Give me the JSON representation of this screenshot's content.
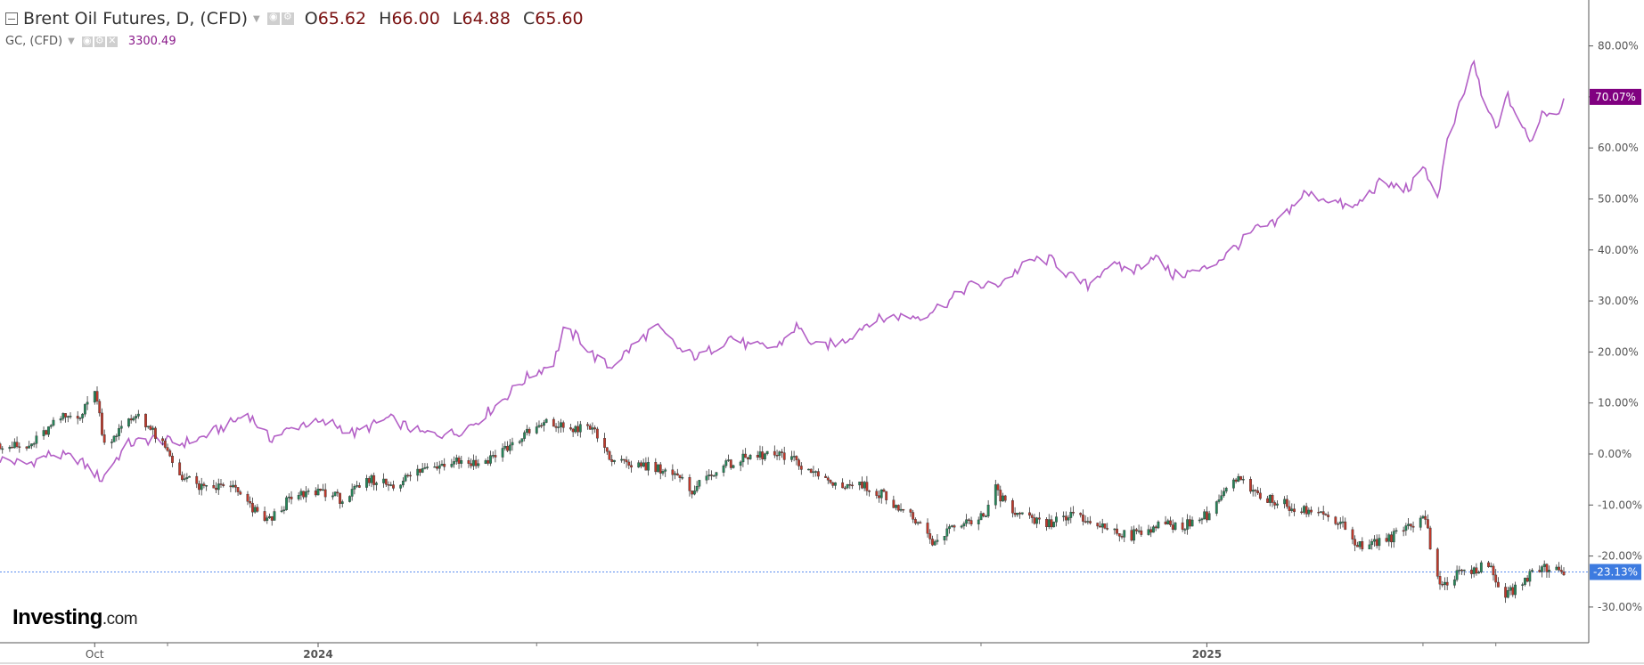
{
  "header": {
    "main_symbol": "Brent Oil Futures, D, (CFD)",
    "ohlc": [
      {
        "key": "O",
        "value": "65.62"
      },
      {
        "key": "H",
        "value": "66.00"
      },
      {
        "key": "L",
        "value": "64.88"
      },
      {
        "key": "C",
        "value": "65.60"
      }
    ],
    "compare_symbol": "GC, (CFD)",
    "compare_value": "3300.49"
  },
  "logo": {
    "name": "Investing",
    "suffix": ".com"
  },
  "colors": {
    "compare_line": "#b35fc6",
    "compare_badge": "#800080",
    "main_badge": "#3d7be0",
    "reference_line": "#5b8def",
    "candle_up": "#26875a",
    "candle_down": "#c0392b"
  },
  "chart_data": {
    "type": "line",
    "y_axis": {
      "unit": "percent",
      "range": [
        -37,
        89
      ],
      "ticks": [
        "80.00%",
        "70.00%",
        "60.00%",
        "50.00%",
        "40.00%",
        "30.00%",
        "20.00%",
        "10.00%",
        "0.00%",
        "-10.00%",
        "-20.00%",
        "-30.00%"
      ],
      "tick_values": [
        80,
        70,
        60,
        50,
        40,
        30,
        20,
        10,
        0,
        -10,
        -20,
        -30
      ]
    },
    "x_axis": {
      "range": [
        "2023-08-24",
        "2025-05-29"
      ],
      "labels": [
        {
          "text": "Oct",
          "date": "2023-10-02"
        },
        {
          "text": "2024",
          "date": "2024-01-02"
        },
        {
          "text": "2025",
          "date": "2025-01-02"
        }
      ],
      "minor_ticks": [
        "2023-11-01",
        "2024-04-01",
        "2024-07-01",
        "2024-10-01",
        "2025-04-01",
        "2025-05-01"
      ]
    },
    "series": [
      {
        "name": "GC, (CFD)",
        "style": "line",
        "last_label": "70.07%",
        "points": [
          [
            "2023-08-24",
            -1
          ],
          [
            "2023-09-04",
            -2
          ],
          [
            "2023-09-14",
            0
          ],
          [
            "2023-09-25",
            -1
          ],
          [
            "2023-10-05",
            -5
          ],
          [
            "2023-10-09",
            -2
          ],
          [
            "2023-10-16",
            2
          ],
          [
            "2023-10-27",
            3
          ],
          [
            "2023-11-06",
            2
          ],
          [
            "2023-11-14",
            3
          ],
          [
            "2023-11-27",
            6
          ],
          [
            "2023-12-04",
            8
          ],
          [
            "2023-12-13",
            3
          ],
          [
            "2023-12-27",
            6
          ],
          [
            "2024-01-08",
            6
          ],
          [
            "2024-01-17",
            4
          ],
          [
            "2024-01-31",
            7
          ],
          [
            "2024-02-14",
            4
          ],
          [
            "2024-02-27",
            4
          ],
          [
            "2024-03-06",
            6
          ],
          [
            "2024-03-14",
            9
          ],
          [
            "2024-03-21",
            12
          ],
          [
            "2024-03-28",
            15
          ],
          [
            "2024-04-08",
            18
          ],
          [
            "2024-04-12",
            24
          ],
          [
            "2024-04-18",
            23
          ],
          [
            "2024-04-25",
            19
          ],
          [
            "2024-05-01",
            17
          ],
          [
            "2024-05-08",
            20
          ],
          [
            "2024-05-20",
            25
          ],
          [
            "2024-05-31",
            20
          ],
          [
            "2024-06-07",
            19
          ],
          [
            "2024-06-20",
            23
          ],
          [
            "2024-06-28",
            21
          ],
          [
            "2024-07-09",
            21
          ],
          [
            "2024-07-17",
            25
          ],
          [
            "2024-07-25",
            21
          ],
          [
            "2024-08-05",
            22
          ],
          [
            "2024-08-16",
            26
          ],
          [
            "2024-08-27",
            27
          ],
          [
            "2024-09-06",
            27
          ],
          [
            "2024-09-18",
            30
          ],
          [
            "2024-09-26",
            33
          ],
          [
            "2024-10-07",
            33
          ],
          [
            "2024-10-22",
            38
          ],
          [
            "2024-10-31",
            38
          ],
          [
            "2024-11-06",
            35
          ],
          [
            "2024-11-14",
            33
          ],
          [
            "2024-11-22",
            37
          ],
          [
            "2024-12-03",
            36
          ],
          [
            "2024-12-11",
            39
          ],
          [
            "2024-12-19",
            35
          ],
          [
            "2024-12-31",
            36
          ],
          [
            "2025-01-10",
            39
          ],
          [
            "2025-01-22",
            44
          ],
          [
            "2025-01-30",
            45
          ],
          [
            "2025-02-11",
            51
          ],
          [
            "2025-02-21",
            50
          ],
          [
            "2025-03-03",
            48
          ],
          [
            "2025-03-14",
            53
          ],
          [
            "2025-03-26",
            52
          ],
          [
            "2025-04-02",
            56
          ],
          [
            "2025-04-07",
            50
          ],
          [
            "2025-04-11",
            61
          ],
          [
            "2025-04-16",
            68
          ],
          [
            "2025-04-22",
            77
          ],
          [
            "2025-04-25",
            70
          ],
          [
            "2025-05-01",
            64
          ],
          [
            "2025-05-06",
            70
          ],
          [
            "2025-05-12",
            64
          ],
          [
            "2025-05-15",
            61
          ],
          [
            "2025-05-20",
            67
          ],
          [
            "2025-05-23",
            67
          ],
          [
            "2025-05-27",
            67
          ],
          [
            "2025-05-29",
            70
          ]
        ]
      },
      {
        "name": "Brent Oil Futures, D, (CFD)",
        "style": "candlestick",
        "last_label": "-23.13%",
        "points": [
          [
            "2023-08-24",
            2
          ],
          [
            "2023-09-04",
            1
          ],
          [
            "2023-09-11",
            4
          ],
          [
            "2023-09-18",
            7
          ],
          [
            "2023-09-27",
            8
          ],
          [
            "2023-10-02",
            13
          ],
          [
            "2023-10-06",
            2
          ],
          [
            "2023-10-13",
            5
          ],
          [
            "2023-10-20",
            8
          ],
          [
            "2023-10-31",
            1
          ],
          [
            "2023-11-06",
            -4
          ],
          [
            "2023-11-16",
            -7
          ],
          [
            "2023-11-27",
            -6
          ],
          [
            "2023-12-06",
            -11
          ],
          [
            "2023-12-13",
            -13
          ],
          [
            "2023-12-21",
            -9
          ],
          [
            "2024-01-03",
            -7
          ],
          [
            "2024-01-12",
            -9
          ],
          [
            "2024-01-24",
            -5
          ],
          [
            "2024-02-02",
            -6
          ],
          [
            "2024-02-14",
            -3
          ],
          [
            "2024-02-27",
            -1
          ],
          [
            "2024-03-08",
            -2
          ],
          [
            "2024-03-19",
            1
          ],
          [
            "2024-03-28",
            4
          ],
          [
            "2024-04-05",
            6
          ],
          [
            "2024-04-15",
            5
          ],
          [
            "2024-04-24",
            5
          ],
          [
            "2024-05-03",
            -2
          ],
          [
            "2024-05-14",
            -2
          ],
          [
            "2024-05-24",
            -3
          ],
          [
            "2024-06-04",
            -7
          ],
          [
            "2024-06-14",
            -3
          ],
          [
            "2024-06-25",
            -1
          ],
          [
            "2024-07-05",
            0
          ],
          [
            "2024-07-15",
            -1
          ],
          [
            "2024-07-25",
            -4
          ],
          [
            "2024-08-02",
            -6
          ],
          [
            "2024-08-12",
            -6
          ],
          [
            "2024-08-22",
            -8
          ],
          [
            "2024-09-04",
            -13
          ],
          [
            "2024-09-11",
            -18
          ],
          [
            "2024-09-20",
            -14
          ],
          [
            "2024-10-03",
            -12
          ],
          [
            "2024-10-07",
            -7
          ],
          [
            "2024-10-15",
            -12
          ],
          [
            "2024-10-28",
            -14
          ],
          [
            "2024-11-06",
            -12
          ],
          [
            "2024-11-19",
            -14
          ],
          [
            "2024-12-02",
            -16
          ],
          [
            "2024-12-12",
            -14
          ],
          [
            "2024-12-23",
            -14
          ],
          [
            "2025-01-02",
            -12
          ],
          [
            "2025-01-10",
            -7
          ],
          [
            "2025-01-15",
            -5
          ],
          [
            "2025-01-22",
            -8
          ],
          [
            "2025-02-04",
            -10
          ],
          [
            "2025-02-12",
            -11
          ],
          [
            "2025-02-26",
            -13
          ],
          [
            "2025-03-05",
            -18
          ],
          [
            "2025-03-17",
            -17
          ],
          [
            "2025-03-26",
            -14
          ],
          [
            "2025-04-02",
            -12
          ],
          [
            "2025-04-04",
            -18
          ],
          [
            "2025-04-08",
            -26
          ],
          [
            "2025-04-17",
            -23
          ],
          [
            "2025-04-28",
            -22
          ],
          [
            "2025-05-05",
            -28
          ],
          [
            "2025-05-12",
            -25
          ],
          [
            "2025-05-20",
            -22
          ],
          [
            "2025-05-29",
            -23
          ]
        ]
      }
    ],
    "reference_line": {
      "value": -23.13,
      "style": "dotted"
    },
    "grid": false,
    "legend": "top-left"
  }
}
